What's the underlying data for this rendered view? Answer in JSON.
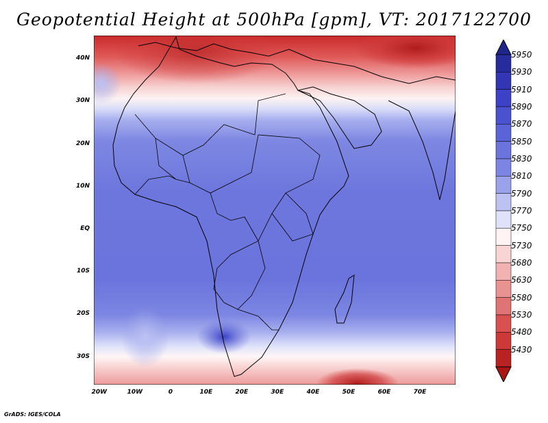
{
  "title": "Geopotential Height at 500hPa [gpm], VT: 2017122700",
  "credit": "GrADS: IGES/COLA",
  "y_axis": {
    "labels": [
      "40N",
      "30N",
      "20N",
      "10N",
      "EQ",
      "10S",
      "20S",
      "30S"
    ],
    "lats": [
      40,
      30,
      20,
      10,
      0,
      -10,
      -20,
      -30
    ],
    "range": [
      -36.5,
      45.5
    ]
  },
  "x_axis": {
    "labels": [
      "20W",
      "10W",
      "0",
      "10E",
      "20E",
      "30E",
      "40E",
      "50E",
      "60E",
      "70E"
    ],
    "lons": [
      -20,
      -10,
      0,
      10,
      20,
      30,
      40,
      50,
      60,
      70
    ],
    "range": [
      -21.5,
      80
    ]
  },
  "colorbar": {
    "labels": [
      "5950",
      "5930",
      "5910",
      "5890",
      "5870",
      "5850",
      "5830",
      "5810",
      "5790",
      "5770",
      "5750",
      "5730",
      "5680",
      "5630",
      "5580",
      "5530",
      "5480",
      "5430"
    ],
    "colors": [
      "#262d9a",
      "#3236b4",
      "#3c41c6",
      "#4a52cf",
      "#5a64d6",
      "#6a74dc",
      "#7c86e2",
      "#9aa3ea",
      "#bcc2f2",
      "#dfe2fa",
      "#fff3f3",
      "#f8d4d4",
      "#f1b2b2",
      "#e99292",
      "#e07373",
      "#d95050",
      "#cd3838",
      "#b82222"
    ]
  },
  "colors": {
    "land_border": "#000000",
    "background": "#ffffff"
  }
}
